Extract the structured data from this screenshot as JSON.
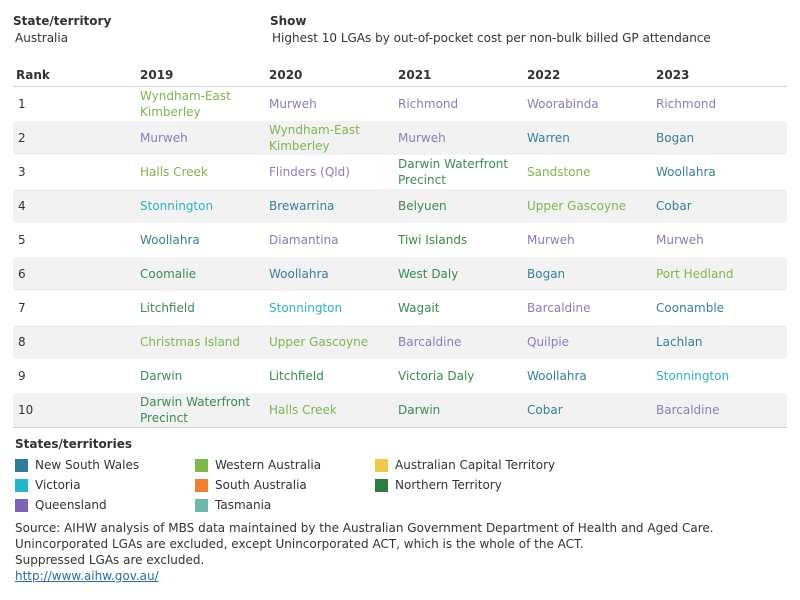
{
  "filters": {
    "state": {
      "label": "State/territory",
      "value": "Australia"
    },
    "show": {
      "label": "Show",
      "value": "Highest 10 LGAs by out-of-pocket cost per non-bulk billed GP attendance"
    }
  },
  "table": {
    "headers": [
      "Rank",
      "2019",
      "2020",
      "2021",
      "2022",
      "2023"
    ],
    "rows": [
      {
        "rank": "1",
        "cells": [
          {
            "name": "Wyndham-East Kimberley",
            "state": "WA"
          },
          {
            "name": "Murweh",
            "state": "QLD"
          },
          {
            "name": "Richmond",
            "state": "QLD"
          },
          {
            "name": "Woorabinda",
            "state": "QLD"
          },
          {
            "name": "Richmond",
            "state": "QLD"
          }
        ]
      },
      {
        "rank": "2",
        "cells": [
          {
            "name": "Murweh",
            "state": "QLD"
          },
          {
            "name": "Wyndham-East Kimberley",
            "state": "WA"
          },
          {
            "name": "Murweh",
            "state": "QLD"
          },
          {
            "name": "Warren",
            "state": "NSW"
          },
          {
            "name": "Bogan",
            "state": "NSW"
          }
        ]
      },
      {
        "rank": "3",
        "cells": [
          {
            "name": "Halls Creek",
            "state": "WA"
          },
          {
            "name": "Flinders (Qld)",
            "state": "QLD"
          },
          {
            "name": "Darwin Waterfront Precinct",
            "state": "NT"
          },
          {
            "name": "Sandstone",
            "state": "WA"
          },
          {
            "name": "Woollahra",
            "state": "NSW"
          }
        ]
      },
      {
        "rank": "4",
        "cells": [
          {
            "name": "Stonnington",
            "state": "VIC"
          },
          {
            "name": "Brewarrina",
            "state": "NSW"
          },
          {
            "name": "Belyuen",
            "state": "NT"
          },
          {
            "name": "Upper Gascoyne",
            "state": "WA"
          },
          {
            "name": "Cobar",
            "state": "NSW"
          }
        ]
      },
      {
        "rank": "5",
        "cells": [
          {
            "name": "Woollahra",
            "state": "NSW"
          },
          {
            "name": "Diamantina",
            "state": "QLD"
          },
          {
            "name": "Tiwi Islands",
            "state": "NT"
          },
          {
            "name": "Murweh",
            "state": "QLD"
          },
          {
            "name": "Murweh",
            "state": "QLD"
          }
        ]
      },
      {
        "rank": "6",
        "cells": [
          {
            "name": "Coomalie",
            "state": "NT"
          },
          {
            "name": "Woollahra",
            "state": "NSW"
          },
          {
            "name": "West Daly",
            "state": "NT"
          },
          {
            "name": "Bogan",
            "state": "NSW"
          },
          {
            "name": "Port Hedland",
            "state": "WA"
          }
        ]
      },
      {
        "rank": "7",
        "cells": [
          {
            "name": "Litchfield",
            "state": "NT"
          },
          {
            "name": "Stonnington",
            "state": "VIC"
          },
          {
            "name": "Wagait",
            "state": "NT"
          },
          {
            "name": "Barcaldine",
            "state": "QLD"
          },
          {
            "name": "Coonamble",
            "state": "NSW"
          }
        ]
      },
      {
        "rank": "8",
        "cells": [
          {
            "name": "Christmas Island",
            "state": "WA"
          },
          {
            "name": "Upper Gascoyne",
            "state": "WA"
          },
          {
            "name": "Barcaldine",
            "state": "QLD"
          },
          {
            "name": "Quilpie",
            "state": "QLD"
          },
          {
            "name": "Lachlan",
            "state": "NSW"
          }
        ]
      },
      {
        "rank": "9",
        "cells": [
          {
            "name": "Darwin",
            "state": "NT"
          },
          {
            "name": "Litchfield",
            "state": "NT"
          },
          {
            "name": "Victoria Daly",
            "state": "NT"
          },
          {
            "name": "Woollahra",
            "state": "NSW"
          },
          {
            "name": "Stonnington",
            "state": "VIC"
          }
        ]
      },
      {
        "rank": "10",
        "cells": [
          {
            "name": "Darwin Waterfront Precinct",
            "state": "NT"
          },
          {
            "name": "Halls Creek",
            "state": "WA"
          },
          {
            "name": "Darwin",
            "state": "NT"
          },
          {
            "name": "Cobar",
            "state": "NSW"
          },
          {
            "name": "Barcaldine",
            "state": "QLD"
          }
        ]
      }
    ]
  },
  "legend": {
    "title": "States/territories",
    "items": [
      {
        "key": "NSW",
        "label": "New South Wales",
        "color": "#2e7d9a"
      },
      {
        "key": "VIC",
        "label": "Victoria",
        "color": "#23b5c9"
      },
      {
        "key": "QLD",
        "label": "Queensland",
        "color": "#7e63b8"
      },
      {
        "key": "WA",
        "label": "Western Australia",
        "color": "#7db84a"
      },
      {
        "key": "SA",
        "label": "South Australia",
        "color": "#f07f31"
      },
      {
        "key": "TAS",
        "label": "Tasmania",
        "color": "#6db8ad"
      },
      {
        "key": "ACT",
        "label": "Australian Capital Territory",
        "color": "#eccb45"
      },
      {
        "key": "NT",
        "label": "Northern Territory",
        "color": "#2b7d45"
      }
    ]
  },
  "text_colors": {
    "NSW": "#3a7e9a",
    "VIC": "#2fb3c4",
    "QLD": "#8d7ac0",
    "WA": "#7fb450",
    "NT": "#3d8a52"
  },
  "source": {
    "lines": [
      "Source: AIHW analysis of MBS data maintained by the Australian Government Department of Health and Aged Care.",
      "Unincorporated LGAs are excluded, except Unincorporated ACT, which is the whole of the ACT.",
      "Suppressed LGAs are excluded."
    ],
    "link": "http://www.aihw.gov.au/"
  }
}
